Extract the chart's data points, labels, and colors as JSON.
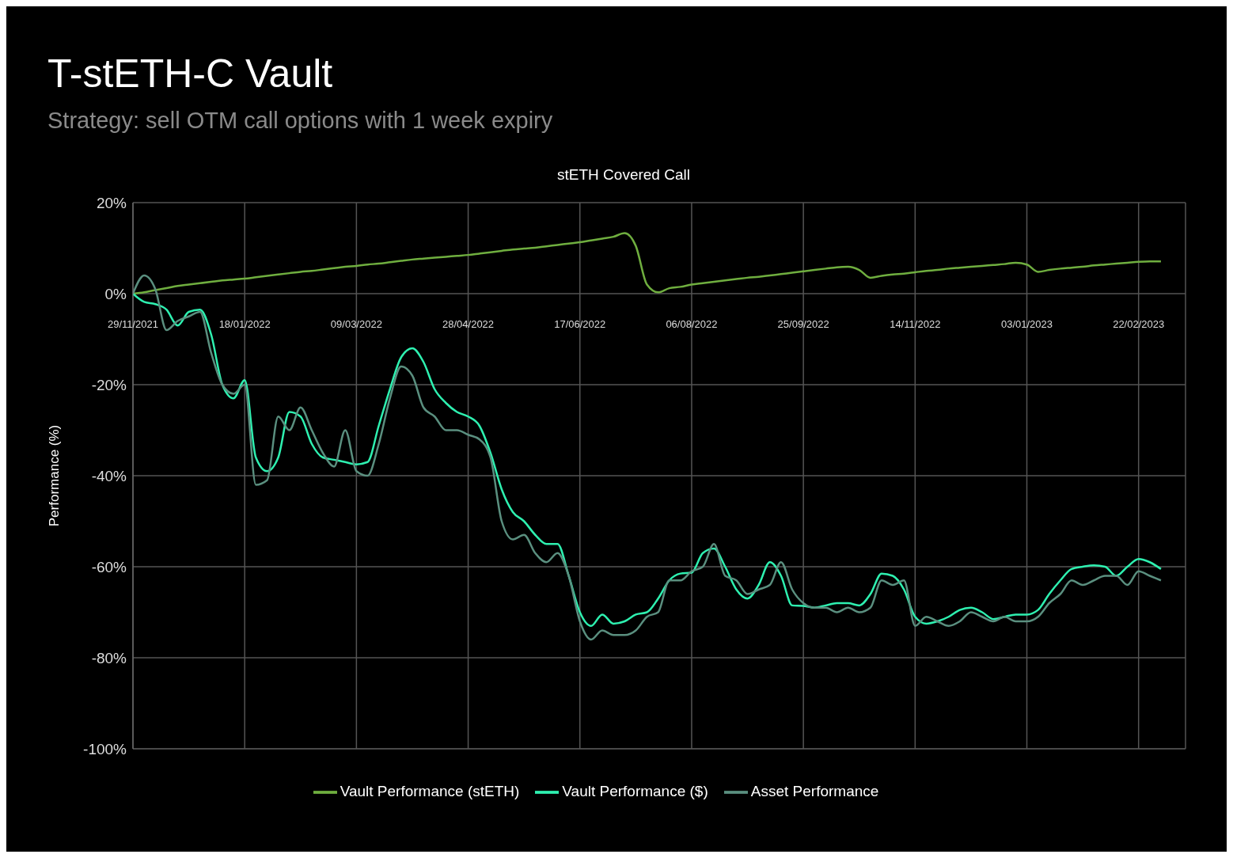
{
  "chart_data": {
    "type": "line",
    "title": "T-stETH-C Vault",
    "subtitle": "Strategy: sell OTM call options with 1 week expiry",
    "annotations": [
      "stETH Covered Call"
    ],
    "ylabel": "Performance (%)",
    "x": [
      "2021-11-29",
      "2021-12-04",
      "2021-12-09",
      "2021-12-14",
      "2021-12-19",
      "2021-12-24",
      "2021-12-29",
      "2022-01-03",
      "2022-01-08",
      "2022-01-13",
      "2022-01-18",
      "2022-01-23",
      "2022-01-28",
      "2022-02-02",
      "2022-02-07",
      "2022-02-12",
      "2022-02-17",
      "2022-02-22",
      "2022-02-27",
      "2022-03-04",
      "2022-03-09",
      "2022-03-14",
      "2022-03-19",
      "2022-03-24",
      "2022-03-29",
      "2022-04-03",
      "2022-04-08",
      "2022-04-13",
      "2022-04-18",
      "2022-04-23",
      "2022-04-28",
      "2022-05-03",
      "2022-05-08",
      "2022-05-13",
      "2022-05-18",
      "2022-05-23",
      "2022-05-28",
      "2022-06-02",
      "2022-06-07",
      "2022-06-12",
      "2022-06-17",
      "2022-06-22",
      "2022-06-27",
      "2022-07-02",
      "2022-07-07",
      "2022-07-12",
      "2022-07-17",
      "2022-07-22",
      "2022-07-27",
      "2022-08-01",
      "2022-08-06",
      "2022-08-11",
      "2022-08-16",
      "2022-08-21",
      "2022-08-26",
      "2022-08-31",
      "2022-09-05",
      "2022-09-10",
      "2022-09-15",
      "2022-09-20",
      "2022-09-25",
      "2022-09-30",
      "2022-10-05",
      "2022-10-10",
      "2022-10-15",
      "2022-10-20",
      "2022-10-25",
      "2022-10-30",
      "2022-11-04",
      "2022-11-09",
      "2022-11-14",
      "2022-11-19",
      "2022-11-24",
      "2022-11-29",
      "2022-12-04",
      "2022-12-09",
      "2022-12-14",
      "2022-12-19",
      "2022-12-24",
      "2022-12-29",
      "2023-01-03",
      "2023-01-08",
      "2023-01-13",
      "2023-01-18",
      "2023-01-23",
      "2023-01-28",
      "2023-02-02",
      "2023-02-07",
      "2023-02-12",
      "2023-02-17",
      "2023-02-22",
      "2023-02-27",
      "2023-03-04"
    ],
    "series": [
      {
        "name": "Vault Performance (stETH)",
        "color": "#6fae3f",
        "values": [
          0,
          0.3,
          0.8,
          1.2,
          1.7,
          2.0,
          2.3,
          2.6,
          2.9,
          3.1,
          3.3,
          3.6,
          3.9,
          4.2,
          4.5,
          4.8,
          5.0,
          5.3,
          5.6,
          5.9,
          6.1,
          6.4,
          6.6,
          6.9,
          7.2,
          7.5,
          7.7,
          7.9,
          8.1,
          8.3,
          8.5,
          8.8,
          9.1,
          9.4,
          9.7,
          9.9,
          10.1,
          10.4,
          10.7,
          11.0,
          11.3,
          11.7,
          12.1,
          12.5,
          13.3,
          10.5,
          2,
          0.3,
          1.2,
          1.5,
          2.0,
          2.3,
          2.6,
          2.9,
          3.2,
          3.5,
          3.7,
          4.0,
          4.3,
          4.6,
          4.9,
          5.2,
          5.5,
          5.8,
          5.9,
          5.2,
          3.5,
          3.9,
          4.2,
          4.4,
          4.7,
          5.0,
          5.2,
          5.5,
          5.7,
          5.9,
          6.1,
          6.3,
          6.5,
          6.8,
          6.4,
          4.8,
          5.2,
          5.5,
          5.7,
          5.9,
          6.2,
          6.4,
          6.6,
          6.8,
          7.0,
          7.1,
          7.1
        ]
      },
      {
        "name": "Vault Performance ($)",
        "color": "#2ef0b0",
        "values": [
          0,
          -1.8,
          -2.3,
          -3.5,
          -7,
          -4,
          -3.5,
          -9,
          -20,
          -23,
          -19,
          -36,
          -39,
          -36,
          -26,
          -27,
          -33,
          -36,
          -36.5,
          -37,
          -37.5,
          -37,
          -29,
          -21,
          -14,
          -12,
          -15,
          -21,
          -24,
          -26,
          -27,
          -29,
          -35,
          -43,
          -48,
          -50,
          -53,
          -55,
          -55,
          -62,
          -70,
          -73,
          -70.5,
          -72.5,
          -72,
          -70.5,
          -70,
          -67,
          -63,
          -61.5,
          -61.3,
          -57,
          -56,
          -60,
          -65,
          -67,
          -64,
          -59,
          -62,
          -68.5,
          -68.6,
          -69,
          -68.5,
          -68,
          -68,
          -68.5,
          -66,
          -61.5,
          -62,
          -65,
          -71,
          -72.5,
          -72,
          -71,
          -69.5,
          -69,
          -70,
          -71.5,
          -71,
          -70.5,
          -70.5,
          -69.5,
          -66,
          -63,
          -60.5,
          -60,
          -59.7,
          -60,
          -62,
          -60,
          -58.3,
          -59,
          -60.5
        ]
      },
      {
        "name": "Asset Performance",
        "color": "#5a8f7f",
        "values": [
          0,
          4,
          1,
          -8,
          -6,
          -5,
          -4,
          -13,
          -20,
          -22,
          -20,
          -42,
          -41,
          -27,
          -30,
          -25,
          -30,
          -35,
          -38,
          -30,
          -39,
          -40,
          -33,
          -23,
          -16,
          -18,
          -25,
          -27,
          -30,
          -30,
          -31,
          -32,
          -36,
          -50,
          -54,
          -53,
          -57,
          -59,
          -57,
          -62,
          -72,
          -76,
          -74,
          -75,
          -75,
          -74,
          -71,
          -70,
          -63,
          -63,
          -61,
          -60,
          -55,
          -62,
          -63,
          -66,
          -65,
          -64,
          -59,
          -65,
          -68,
          -69,
          -69,
          -70,
          -69,
          -70,
          -69,
          -63,
          -64,
          -63,
          -73,
          -71,
          -72,
          -73,
          -72,
          -70,
          -71,
          -72,
          -71,
          -72,
          -72,
          -71,
          -68,
          -66,
          -63,
          -64,
          -63,
          -62,
          -62,
          -64,
          -61,
          -62,
          -63
        ]
      }
    ],
    "xlim": [
      "2021-11-29",
      "2023-03-15"
    ],
    "xticks": [
      {
        "value": "2021-11-29",
        "label": "29/11/2021"
      },
      {
        "value": "2022-01-18",
        "label": "18/01/2022"
      },
      {
        "value": "2022-03-09",
        "label": "09/03/2022"
      },
      {
        "value": "2022-04-28",
        "label": "28/04/2022"
      },
      {
        "value": "2022-06-17",
        "label": "17/06/2022"
      },
      {
        "value": "2022-08-06",
        "label": "06/08/2022"
      },
      {
        "value": "2022-09-25",
        "label": "25/09/2022"
      },
      {
        "value": "2022-11-14",
        "label": "14/11/2022"
      },
      {
        "value": "2023-01-03",
        "label": "03/01/2023"
      },
      {
        "value": "2023-02-22",
        "label": "22/02/2023"
      }
    ],
    "ylim": [
      -100,
      20
    ],
    "yticks": [
      {
        "value": -100,
        "label": "-100%"
      },
      {
        "value": -80,
        "label": "-80%"
      },
      {
        "value": -60,
        "label": "-60%"
      },
      {
        "value": -40,
        "label": "-40%"
      },
      {
        "value": -20,
        "label": "-20%"
      },
      {
        "value": 0,
        "label": "0%"
      },
      {
        "value": 20,
        "label": "20%"
      }
    ],
    "grid": true,
    "legend": "bottom"
  }
}
